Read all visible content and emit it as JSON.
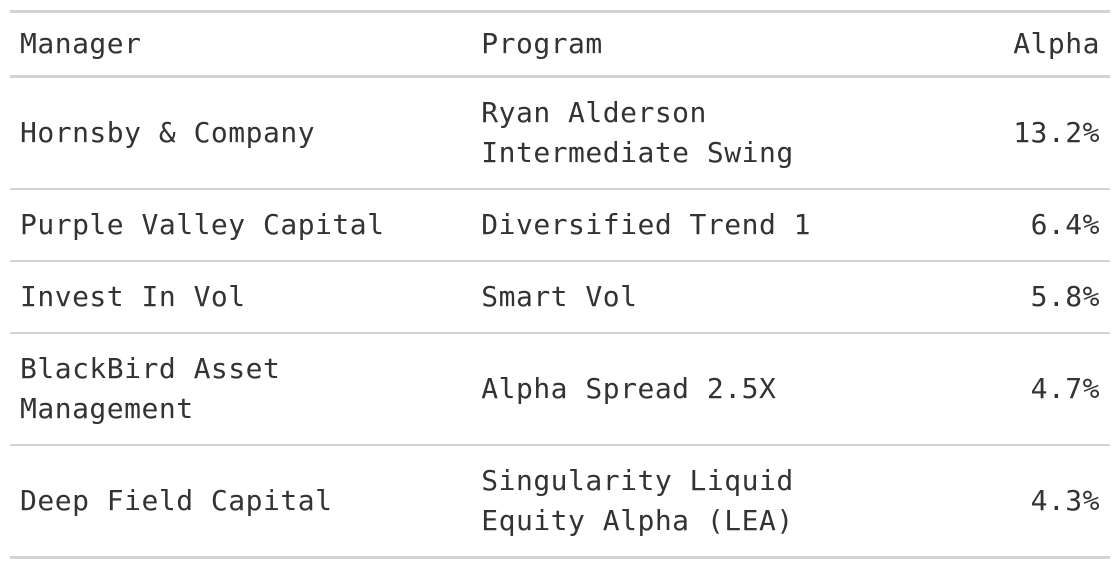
{
  "table": {
    "columns": {
      "manager": "Manager",
      "program": "Program",
      "alpha": "Alpha"
    },
    "rows": [
      {
        "manager": [
          "Hornsby & Company"
        ],
        "program": [
          "Ryan Alderson",
          "Intermediate Swing"
        ],
        "alpha": "13.2%"
      },
      {
        "manager": [
          "Purple Valley Capital"
        ],
        "program": [
          "Diversified Trend 1"
        ],
        "alpha": "6.4%"
      },
      {
        "manager": [
          "Invest In Vol"
        ],
        "program": [
          "Smart Vol"
        ],
        "alpha": "5.8%"
      },
      {
        "manager": [
          "BlackBird Asset",
          "Management"
        ],
        "program": [
          "Alpha Spread 2.5X"
        ],
        "alpha": "4.7%"
      },
      {
        "manager": [
          "Deep Field Capital"
        ],
        "program": [
          "Singularity Liquid",
          "Equity Alpha (LEA)"
        ],
        "alpha": "4.3%"
      }
    ]
  }
}
